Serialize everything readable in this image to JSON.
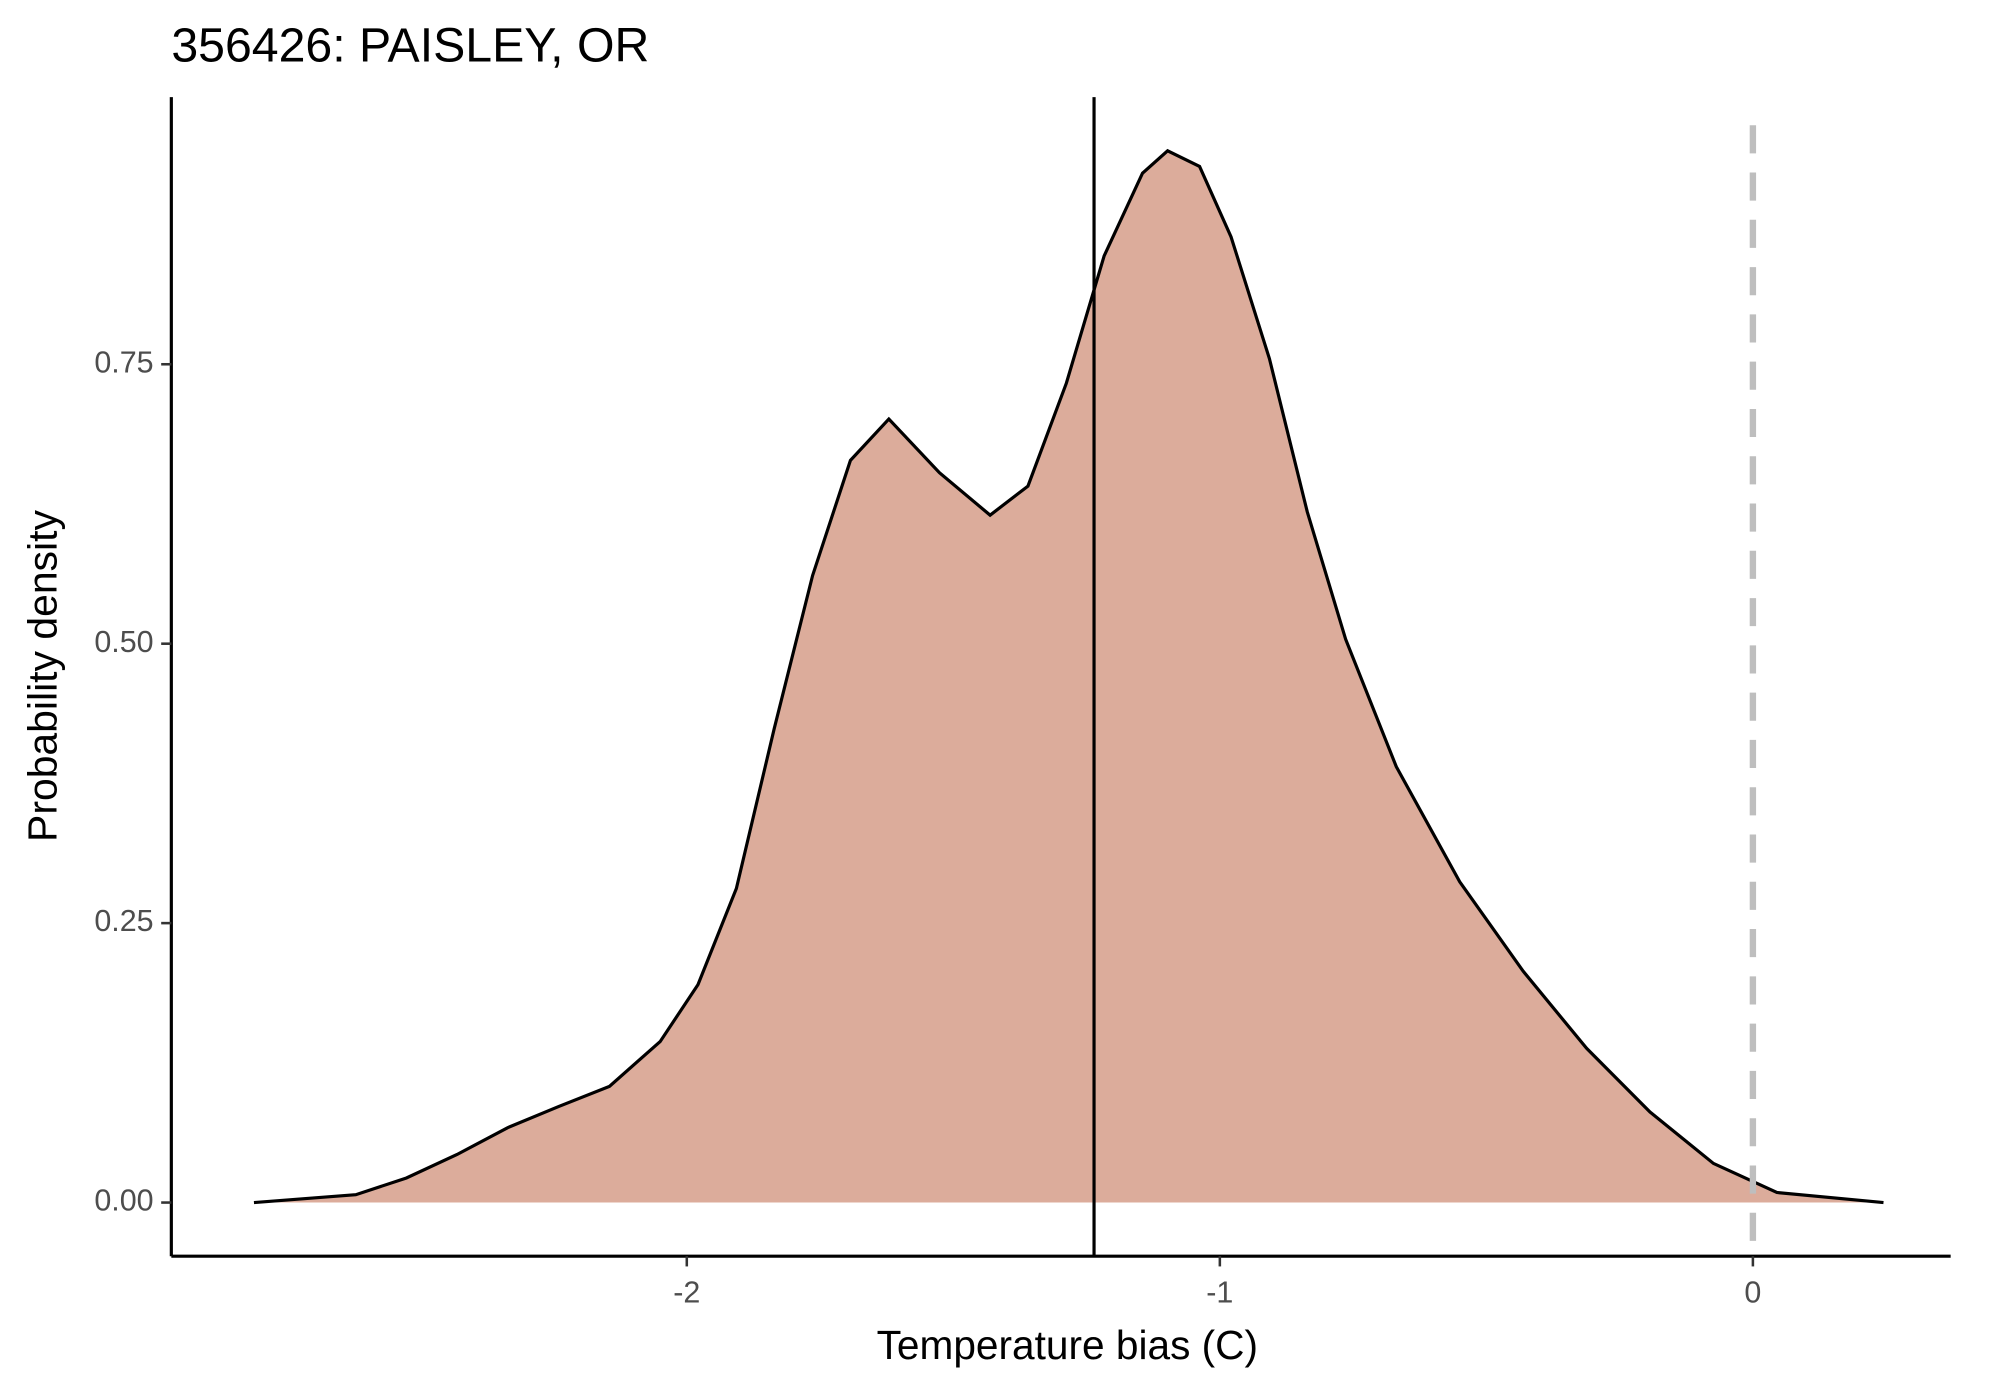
{
  "chart_data": {
    "type": "density",
    "title": "356426: PAISLEY, OR",
    "x_label": "Temperature bias (C)",
    "y_label": "Probability density",
    "x": [
      -2.812,
      -2.621,
      -2.526,
      -2.431,
      -2.336,
      -2.24,
      -2.145,
      -2.05,
      -1.979,
      -1.907,
      -1.836,
      -1.764,
      -1.693,
      -1.621,
      -1.526,
      -1.431,
      -1.36,
      -1.288,
      -1.217,
      -1.145,
      -1.098,
      -1.038,
      -0.979,
      -0.907,
      -0.836,
      -0.764,
      -0.669,
      -0.55,
      -0.431,
      -0.312,
      -0.193,
      -0.074,
      0.045,
      0.245
    ],
    "values": [
      0,
      0.007,
      0.022,
      0.043,
      0.067,
      0.086,
      0.104,
      0.144,
      0.195,
      0.281,
      0.424,
      0.561,
      0.664,
      0.701,
      0.653,
      0.615,
      0.641,
      0.733,
      0.847,
      0.921,
      0.941,
      0.927,
      0.864,
      0.755,
      0.618,
      0.504,
      0.39,
      0.287,
      0.207,
      0.138,
      0.081,
      0.035,
      0.009,
      0
    ],
    "color": "#dcac9b",
    "vlines": [
      {
        "value": -1.236,
        "color": "#000000",
        "dashed": false
      },
      {
        "value": 0,
        "color": "#bebebe",
        "dashed": true
      }
    ],
    "xlim": [
      -2.967,
      0.371
    ],
    "ylim": [
      -0.048,
      0.989
    ],
    "xticks": [
      -2,
      -1,
      0
    ],
    "yticks": [
      {
        "value": 0,
        "label": "0.00"
      },
      {
        "value": 0.25,
        "label": "0.25"
      },
      {
        "value": 0.5,
        "label": "0.50"
      },
      {
        "value": 0.75,
        "label": "0.75"
      }
    ],
    "grid": false
  }
}
